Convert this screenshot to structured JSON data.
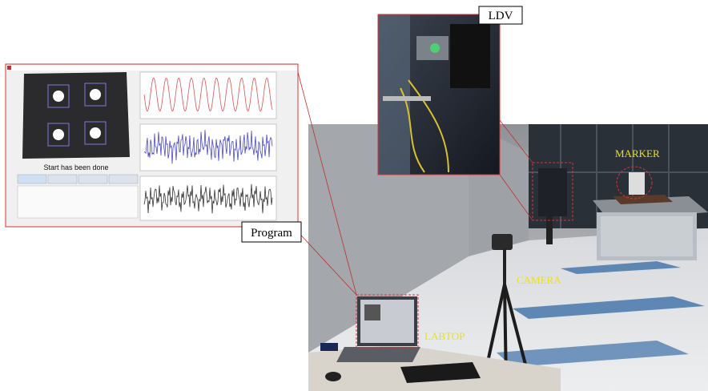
{
  "callouts": {
    "ldv": "LDV",
    "program": "Program"
  },
  "annotations": {
    "marker": "MARKER",
    "camera": "CAMERA",
    "laptop": "LABTOP"
  },
  "program": {
    "status": "Start has been done"
  }
}
